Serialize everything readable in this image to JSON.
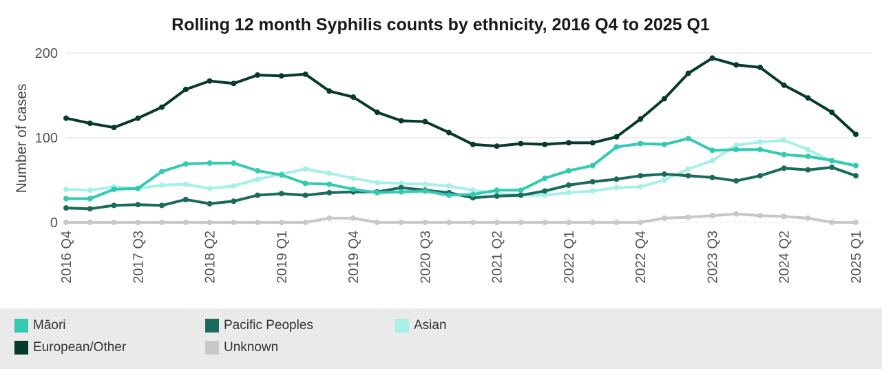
{
  "chart_data": {
    "type": "line",
    "title": "Rolling 12 month Syphilis counts by ethnicity, 2016 Q4 to 2025 Q1",
    "xlabel": "",
    "ylabel": "Number of cases",
    "ylim": [
      0,
      200
    ],
    "y_ticks": [
      "0",
      "100",
      "200"
    ],
    "x": [
      "2016 Q4",
      "2017 Q1",
      "2017 Q2",
      "2017 Q3",
      "2017 Q4",
      "2018 Q1",
      "2018 Q2",
      "2018 Q3",
      "2018 Q4",
      "2019 Q1",
      "2019 Q2",
      "2019 Q3",
      "2019 Q4",
      "2020 Q1",
      "2020 Q2",
      "2020 Q3",
      "2020 Q4",
      "2021 Q1",
      "2021 Q2",
      "2021 Q3",
      "2021 Q4",
      "2022 Q1",
      "2022 Q2",
      "2022 Q3",
      "2022 Q4",
      "2023 Q1",
      "2023 Q2",
      "2023 Q3",
      "2023 Q4",
      "2024 Q1",
      "2024 Q2",
      "2024 Q3",
      "2024 Q4",
      "2025 Q1"
    ],
    "x_tick_labels": [
      "2016 Q4",
      "2017 Q3",
      "2018 Q2",
      "2019 Q1",
      "2019 Q4",
      "2020 Q3",
      "2021 Q2",
      "2022 Q1",
      "2022 Q4",
      "2023 Q3",
      "2024 Q2",
      "2025 Q1"
    ],
    "grid": true,
    "legend_position": "bottom",
    "series": [
      {
        "name": "Asian",
        "color": "#a6f0e8",
        "values": [
          39,
          38,
          42,
          40,
          44,
          45,
          40,
          43,
          51,
          57,
          63,
          58,
          52,
          47,
          46,
          45,
          43,
          38,
          34,
          32,
          32,
          35,
          37,
          41,
          42,
          50,
          63,
          73,
          91,
          95,
          97,
          86,
          72,
          67
        ]
      },
      {
        "name": "Unknown",
        "color": "#c8c8c8",
        "values": [
          0,
          0,
          0,
          0,
          0,
          0,
          0,
          0,
          0,
          0,
          0,
          5,
          5,
          0,
          0,
          0,
          0,
          0,
          0,
          0,
          0,
          0,
          0,
          0,
          0,
          5,
          6,
          8,
          10,
          8,
          7,
          5,
          0,
          0
        ]
      },
      {
        "name": "Pacific Peoples",
        "color": "#1b6b5c",
        "values": [
          17,
          16,
          20,
          21,
          20,
          27,
          22,
          25,
          32,
          34,
          32,
          35,
          36,
          36,
          41,
          38,
          35,
          29,
          31,
          32,
          37,
          44,
          48,
          51,
          55,
          57,
          55,
          53,
          49,
          55,
          64,
          62,
          65,
          55
        ]
      },
      {
        "name": "Māori",
        "color": "#33c9b3",
        "values": [
          28,
          28,
          39,
          40,
          60,
          69,
          70,
          70,
          61,
          56,
          46,
          45,
          39,
          35,
          36,
          37,
          32,
          33,
          38,
          38,
          52,
          61,
          67,
          89,
          93,
          92,
          99,
          85,
          86,
          86,
          80,
          78,
          73,
          67
        ]
      },
      {
        "name": "European/Other",
        "color": "#063a2f",
        "values": [
          123,
          117,
          112,
          123,
          136,
          157,
          167,
          164,
          174,
          173,
          175,
          155,
          148,
          130,
          120,
          119,
          106,
          92,
          90,
          93,
          92,
          94,
          94,
          101,
          122,
          146,
          176,
          194,
          186,
          183,
          162,
          147,
          130,
          104
        ]
      }
    ]
  }
}
